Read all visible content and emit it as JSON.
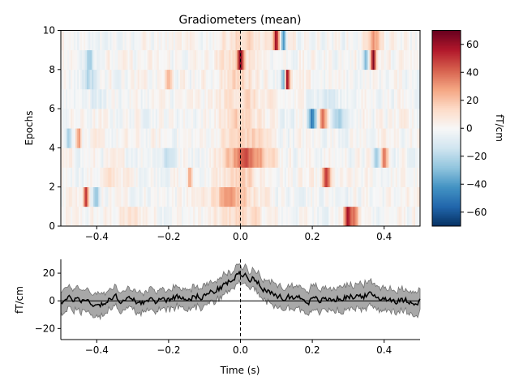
{
  "chart_data": [
    {
      "type": "heatmap",
      "title": "Gradiometers (mean)",
      "xlabel": "",
      "ylabel": "Epochs",
      "xlim": [
        -0.5,
        0.5
      ],
      "ylim": [
        0,
        10
      ],
      "xticks": [
        -0.4,
        -0.2,
        0.0,
        0.2,
        0.4
      ],
      "xtick_labels": [
        "−0.4",
        "−0.2",
        "0.0",
        "0.2",
        "0.4"
      ],
      "yticks": [
        0,
        2,
        4,
        6,
        8,
        10
      ],
      "ytick_labels": [
        "0",
        "2",
        "4",
        "6",
        "8",
        "10"
      ],
      "colormap": "RdBu_r",
      "colorbar": {
        "label": "fT/cm",
        "range": [
          -70,
          70
        ],
        "ticks": [
          -60,
          -40,
          -20,
          0,
          20,
          40,
          60
        ],
        "tick_labels": [
          "−60",
          "−40",
          "−20",
          "0",
          "20",
          "40",
          "60"
        ]
      },
      "vline": 0.0,
      "epochs": [
        {
          "epoch": 1,
          "features": [
            [
              0.3,
              0.012,
              55
            ],
            [
              0.32,
              0.01,
              30
            ],
            [
              -0.3,
              0.05,
              8
            ]
          ]
        },
        {
          "epoch": 2,
          "features": [
            [
              -0.43,
              0.006,
              55
            ],
            [
              -0.4,
              0.01,
              -30
            ],
            [
              -0.05,
              0.05,
              15
            ]
          ]
        },
        {
          "epoch": 3,
          "features": [
            [
              0.24,
              0.01,
              50
            ],
            [
              -0.14,
              0.006,
              25
            ],
            [
              -0.35,
              0.04,
              8
            ]
          ]
        },
        {
          "epoch": 4,
          "features": [
            [
              0.03,
              0.06,
              30
            ],
            [
              0.4,
              0.01,
              35
            ],
            [
              0.38,
              0.01,
              -28
            ],
            [
              -0.2,
              0.02,
              -15
            ]
          ]
        },
        {
          "epoch": 5,
          "features": [
            [
              -0.45,
              0.008,
              30
            ],
            [
              -0.48,
              0.008,
              -20
            ],
            [
              0.05,
              0.03,
              8
            ]
          ]
        },
        {
          "epoch": 6,
          "features": [
            [
              0.2,
              0.01,
              -45
            ],
            [
              0.23,
              0.01,
              45
            ],
            [
              0.27,
              0.02,
              -20
            ]
          ]
        },
        {
          "epoch": 7,
          "features": [
            [
              -0.4,
              0.02,
              -10
            ],
            [
              0.25,
              0.03,
              -12
            ]
          ]
        },
        {
          "epoch": 8,
          "features": [
            [
              0.13,
              0.007,
              60
            ],
            [
              0.12,
              0.006,
              -35
            ],
            [
              -0.42,
              0.02,
              -18
            ],
            [
              -0.2,
              0.01,
              20
            ]
          ]
        },
        {
          "epoch": 9,
          "features": [
            [
              0.37,
              0.008,
              65
            ],
            [
              0.35,
              0.008,
              -25
            ],
            [
              0.0,
              0.008,
              45
            ],
            [
              -0.42,
              0.01,
              -20
            ]
          ]
        },
        {
          "epoch": 10,
          "features": [
            [
              0.1,
              0.008,
              60
            ],
            [
              0.12,
              0.007,
              -40
            ],
            [
              0.37,
              0.02,
              30
            ]
          ]
        }
      ]
    },
    {
      "type": "line",
      "xlabel": "Time (s)",
      "ylabel": "fT/cm",
      "xlim": [
        -0.5,
        0.5
      ],
      "ylim": [
        -28,
        30
      ],
      "xticks": [
        -0.4,
        -0.2,
        0.0,
        0.2,
        0.4
      ],
      "xtick_labels": [
        "−0.4",
        "−0.2",
        "0.0",
        "0.2",
        "0.4"
      ],
      "yticks": [
        -20,
        0,
        20
      ],
      "ytick_labels": [
        "−20",
        "0",
        "20"
      ],
      "vline": 0.0,
      "hline": 0,
      "series": [
        {
          "kind": "mean",
          "color": "#000000",
          "x": [
            -0.5,
            -0.45,
            -0.4,
            -0.35,
            -0.3,
            -0.25,
            -0.2,
            -0.15,
            -0.1,
            -0.05,
            0.0,
            0.02,
            0.05,
            0.08,
            0.1,
            0.15,
            0.2,
            0.25,
            0.3,
            0.35,
            0.4,
            0.45,
            0.5
          ],
          "y": [
            0,
            2,
            -3,
            2,
            0,
            -1,
            2,
            3,
            4,
            10,
            20,
            18,
            14,
            6,
            2,
            3,
            0,
            1,
            3,
            4,
            2,
            0,
            0
          ]
        },
        {
          "kind": "band",
          "color": "#a8a8a8",
          "x": [
            -0.5,
            -0.45,
            -0.4,
            -0.35,
            -0.3,
            -0.25,
            -0.2,
            -0.15,
            -0.1,
            -0.05,
            0.0,
            0.02,
            0.05,
            0.08,
            0.1,
            0.15,
            0.2,
            0.25,
            0.3,
            0.35,
            0.4,
            0.45,
            0.5
          ],
          "half_width": [
            8,
            8,
            8,
            7,
            7,
            7,
            7,
            7,
            7,
            7,
            6,
            6,
            7,
            8,
            9,
            8,
            9,
            8,
            9,
            9,
            8,
            8,
            8
          ]
        }
      ]
    }
  ]
}
